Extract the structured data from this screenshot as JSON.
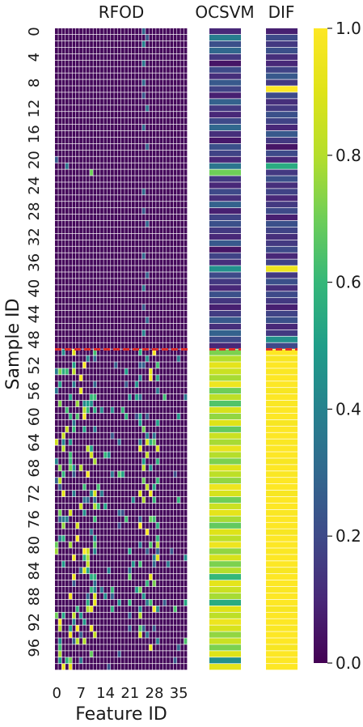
{
  "chart_data": {
    "type": "heatmap",
    "panels": [
      {
        "title": "RFOD",
        "columns": 38,
        "xlabel": "Feature ID",
        "xticks": [
          "0",
          "7",
          "14",
          "21",
          "28",
          "35"
        ]
      },
      {
        "title": "OCSVM",
        "columns": 1
      },
      {
        "title": "DIF",
        "columns": 1
      }
    ],
    "ylabel": "Sample ID",
    "yticks": [
      "0",
      "4",
      "8",
      "12",
      "16",
      "20",
      "24",
      "28",
      "32",
      "36",
      "40",
      "44",
      "48",
      "52",
      "56",
      "60",
      "64",
      "68",
      "72",
      "76",
      "80",
      "84",
      "88",
      "92",
      "96"
    ],
    "rows": 100,
    "separator_after_row": 49,
    "separator_color": "#e0302a",
    "colorbar": {
      "min": 0.0,
      "max": 1.0,
      "ticks": [
        "0.0",
        "0.2",
        "0.4",
        "0.6",
        "0.8",
        "1.0"
      ],
      "colormap": "viridis"
    },
    "ocsvm_scores": [
      0.1,
      0.38,
      0.22,
      0.3,
      0.15,
      0.05,
      0.2,
      0.12,
      0.25,
      0.18,
      0.08,
      0.28,
      0.15,
      0.1,
      0.2,
      0.3,
      0.12,
      0.06,
      0.22,
      0.18,
      0.1,
      0.35,
      0.7,
      0.15,
      0.1,
      0.2,
      0.12,
      0.28,
      0.08,
      0.18,
      0.22,
      0.15,
      0.1,
      0.25,
      0.05,
      0.18,
      0.12,
      0.45,
      0.2,
      0.15,
      0.1,
      0.22,
      0.14,
      0.08,
      0.16,
      0.25,
      0.12,
      0.28,
      0.2,
      0.1,
      0.72,
      0.8,
      0.92,
      0.85,
      0.78,
      0.95,
      0.7,
      0.82,
      0.65,
      0.88,
      0.75,
      0.9,
      0.68,
      0.85,
      0.78,
      0.93,
      0.8,
      0.72,
      0.9,
      0.82,
      0.75,
      0.95,
      0.88,
      0.7,
      0.85,
      0.92,
      0.78,
      0.68,
      0.9,
      0.82,
      0.95,
      0.75,
      0.88,
      0.72,
      0.8,
      0.6,
      0.92,
      0.85,
      0.78,
      0.55,
      0.9,
      0.82,
      0.95,
      0.88,
      0.75,
      0.85,
      0.72,
      0.9,
      0.45,
      0.92
    ],
    "dif_scores": [
      0.08,
      0.2,
      0.15,
      0.22,
      0.12,
      0.1,
      0.18,
      0.25,
      0.15,
      1.0,
      0.2,
      0.12,
      0.15,
      0.22,
      0.18,
      0.1,
      0.25,
      0.15,
      0.05,
      0.2,
      0.1,
      0.55,
      0.15,
      0.22,
      0.12,
      0.18,
      0.1,
      0.15,
      0.2,
      0.08,
      0.22,
      0.18,
      0.12,
      0.15,
      0.2,
      0.1,
      0.18,
      0.95,
      0.15,
      0.22,
      0.12,
      0.2,
      0.15,
      0.08,
      0.18,
      0.22,
      0.1,
      0.15,
      0.45,
      0.2,
      1.0,
      0.98,
      1.0,
      0.99,
      1.0,
      1.0,
      0.98,
      1.0,
      0.99,
      1.0,
      1.0,
      0.98,
      1.0,
      1.0,
      0.99,
      1.0,
      1.0,
      0.98,
      1.0,
      0.99,
      1.0,
      1.0,
      0.98,
      1.0,
      1.0,
      0.99,
      1.0,
      1.0,
      0.98,
      1.0,
      1.0,
      0.99,
      1.0,
      1.0,
      0.98,
      1.0,
      1.0,
      0.99,
      1.0,
      1.0,
      0.98,
      1.0,
      1.0,
      0.99,
      1.0,
      1.0,
      0.98,
      1.0,
      1.0,
      1.0
    ],
    "rfod_hot_cells": [
      [
        0,
        25,
        0.3
      ],
      [
        2,
        25,
        0.4
      ],
      [
        5,
        25,
        0.35
      ],
      [
        8,
        25,
        0.3
      ],
      [
        12,
        26,
        0.35
      ],
      [
        15,
        25,
        0.3
      ],
      [
        20,
        0,
        0.25
      ],
      [
        21,
        3,
        0.35
      ],
      [
        22,
        10,
        0.7
      ],
      [
        25,
        25,
        0.3
      ],
      [
        30,
        26,
        0.3
      ],
      [
        35,
        25,
        0.3
      ],
      [
        40,
        25,
        0.35
      ],
      [
        45,
        26,
        0.3
      ],
      [
        47,
        25,
        0.4
      ],
      [
        1,
        26,
        0.25
      ],
      [
        10,
        25,
        0.25
      ],
      [
        18,
        26,
        0.28
      ],
      [
        28,
        25,
        0.25
      ],
      [
        38,
        26,
        0.28
      ],
      [
        43,
        25,
        0.25
      ]
    ],
    "rfod_anomaly_seed": 7
  }
}
